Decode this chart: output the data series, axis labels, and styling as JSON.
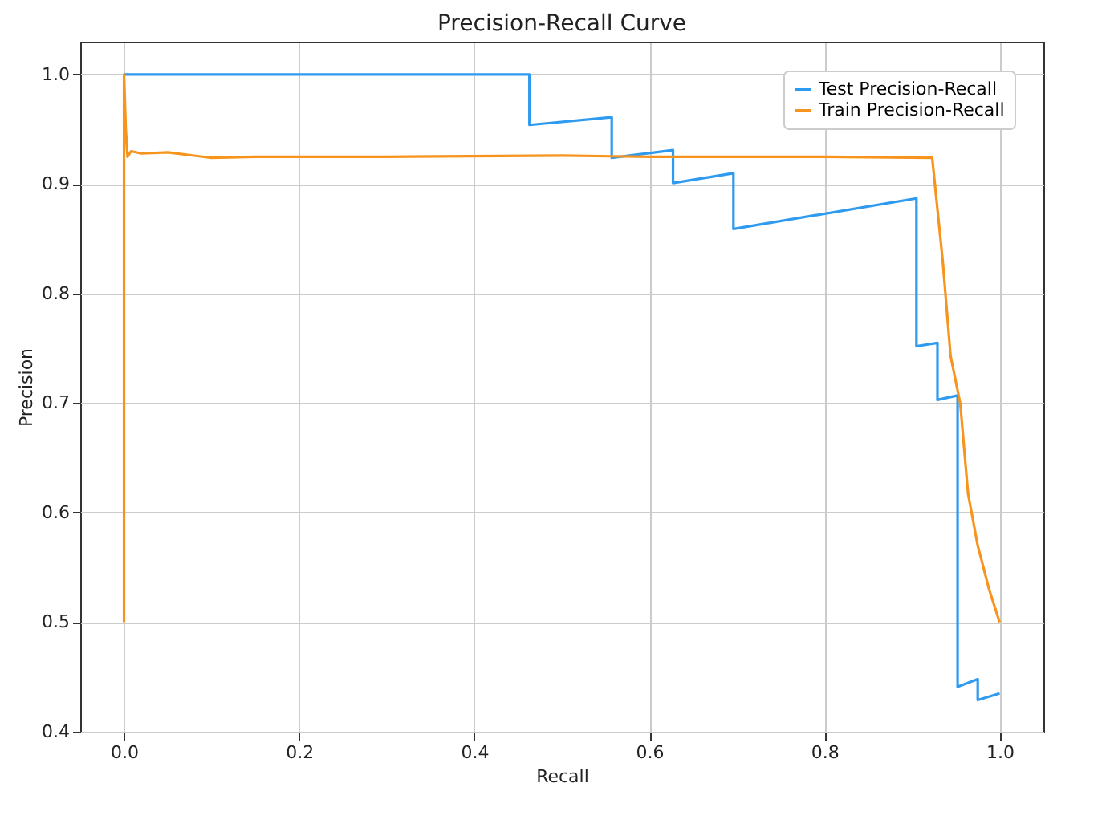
{
  "chart_data": {
    "type": "line",
    "title": "Precision-Recall Curve",
    "xlabel": "Recall",
    "ylabel": "Precision",
    "xlim": [
      -0.05,
      1.05
    ],
    "ylim": [
      0.4,
      1.03
    ],
    "xticks": [
      {
        "value": 0,
        "label": "0.0"
      },
      0.2,
      0.4,
      0.6,
      0.8,
      {
        "value": 1,
        "label": "1.0"
      }
    ],
    "yticks": [
      0.4,
      0.5,
      0.6,
      0.7,
      0.8,
      0.9,
      {
        "value": 1,
        "label": "1.0"
      }
    ],
    "grid": true,
    "legend": "top right",
    "marker": "none",
    "line_style": "solid",
    "series": [
      {
        "name": "Test Precision-Recall",
        "color": "#2e9bf0",
        "x": [
          0,
          0.463,
          0.463,
          0.557,
          0.557,
          0.627,
          0.627,
          0.696,
          0.696,
          0.905,
          0.905,
          0.929,
          0.929,
          0.952,
          0.952,
          0.975,
          0.975,
          1.0
        ],
        "values": [
          1.0,
          1.0,
          0.954,
          0.961,
          0.924,
          0.931,
          0.901,
          0.91,
          0.859,
          0.887,
          0.752,
          0.755,
          0.703,
          0.707,
          0.441,
          0.448,
          0.429,
          0.435
        ]
      },
      {
        "name": "Train Precision-Recall",
        "color": "#f7941d",
        "x": [
          0,
          0,
          0.002,
          0.004,
          0.008,
          0.02,
          0.05,
          0.08,
          0.1,
          0.15,
          0.3,
          0.5,
          0.6,
          0.8,
          0.923,
          0.935,
          0.944,
          0.955,
          0.964,
          0.975,
          0.988,
          1.0
        ],
        "values": [
          0.5,
          1.0,
          0.95,
          0.925,
          0.93,
          0.928,
          0.929,
          0.926,
          0.924,
          0.925,
          0.925,
          0.926,
          0.925,
          0.925,
          0.924,
          0.83,
          0.743,
          0.7,
          0.617,
          0.57,
          0.53,
          0.5
        ]
      }
    ]
  }
}
